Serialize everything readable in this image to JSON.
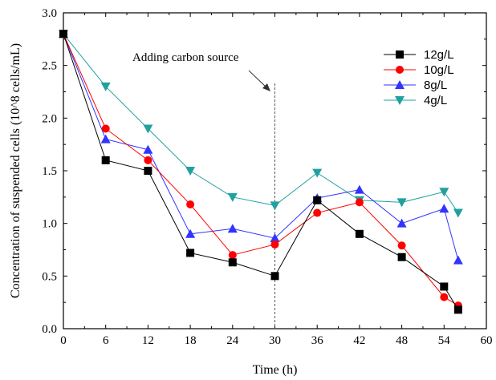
{
  "chart_data": {
    "type": "line",
    "xlabel": "Time (h)",
    "ylabel": "Concentration of suspended cells (10^8 cells/mL)",
    "xlim": [
      0,
      60
    ],
    "ylim": [
      0,
      3.0
    ],
    "xticks": [
      0,
      6,
      12,
      18,
      24,
      30,
      36,
      42,
      48,
      54,
      60
    ],
    "yticks": [
      0.0,
      0.5,
      1.0,
      1.5,
      2.0,
      2.5,
      3.0
    ],
    "xtick_labels": [
      "0",
      "6",
      "12",
      "18",
      "24",
      "30",
      "36",
      "42",
      "48",
      "54",
      "60"
    ],
    "ytick_labels": [
      "0.0",
      "0.5",
      "1.0",
      "1.5",
      "2.0",
      "2.5",
      "3.0"
    ],
    "grid": false,
    "legend_position": "top-right",
    "annotation": {
      "text": "Adding carbon source",
      "x": 30
    },
    "series": [
      {
        "name": "12g/L",
        "color": "#000000",
        "marker": "square",
        "x": [
          0,
          6,
          12,
          18,
          24,
          30,
          36,
          42,
          48,
          54,
          56
        ],
        "y": [
          2.8,
          1.6,
          1.5,
          0.72,
          0.63,
          0.5,
          1.22,
          0.9,
          0.68,
          0.4,
          0.18
        ]
      },
      {
        "name": "10g/L",
        "color": "#ff0000",
        "marker": "circle",
        "x": [
          0,
          6,
          12,
          18,
          24,
          30,
          36,
          42,
          48,
          54,
          56
        ],
        "y": [
          2.8,
          1.9,
          1.6,
          1.18,
          0.7,
          0.8,
          1.1,
          1.2,
          0.79,
          0.3,
          0.22
        ]
      },
      {
        "name": "8g/L",
        "color": "#3333ff",
        "marker": "triangle-up",
        "x": [
          0,
          6,
          12,
          18,
          24,
          30,
          36,
          42,
          48,
          54,
          56
        ],
        "y": [
          2.8,
          1.8,
          1.7,
          0.9,
          0.95,
          0.86,
          1.24,
          1.32,
          1.0,
          1.14,
          0.65
        ]
      },
      {
        "name": "4g/L",
        "color": "#22a0a0",
        "marker": "triangle-down",
        "x": [
          0,
          6,
          12,
          18,
          24,
          30,
          36,
          42,
          48,
          54,
          56
        ],
        "y": [
          2.8,
          2.3,
          1.9,
          1.5,
          1.25,
          1.17,
          1.48,
          1.22,
          1.2,
          1.3,
          1.1
        ]
      }
    ]
  }
}
